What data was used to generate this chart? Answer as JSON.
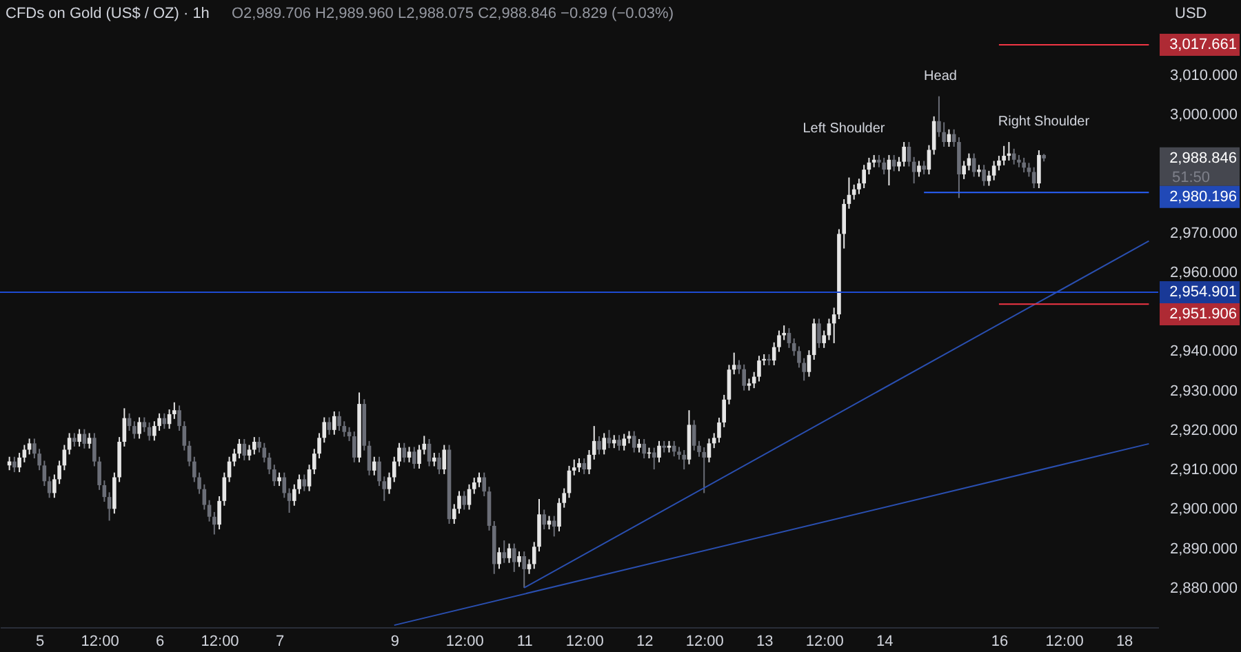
{
  "chart_data": {
    "type": "candlestick",
    "title": "CFDs on Gold (US$ / OZ) · 1h",
    "categories": [
      null,
      null,
      null,
      null,
      null,
      null,
      "5",
      null,
      null,
      null,
      null,
      null,
      null,
      null,
      null,
      null,
      null,
      null,
      "12:00",
      null,
      null,
      null,
      null,
      null,
      null,
      null,
      null,
      null,
      null,
      null,
      "6",
      null,
      null,
      null,
      null,
      null,
      null,
      null,
      null,
      null,
      null,
      null,
      "12:00",
      null,
      null,
      null,
      null,
      null,
      null,
      null,
      null,
      null,
      null,
      null,
      "7",
      null,
      null,
      null,
      null,
      null,
      null,
      null,
      null,
      null,
      null,
      null,
      null,
      null,
      null,
      null,
      null,
      null,
      null,
      null,
      null,
      null,
      null,
      "9",
      null,
      null,
      null,
      null,
      null,
      null,
      null,
      null,
      null,
      null,
      null,
      null,
      null,
      "12:00",
      null,
      null,
      null,
      null,
      null,
      null,
      null,
      null,
      null,
      null,
      null,
      "11",
      null,
      null,
      null,
      null,
      null,
      null,
      null,
      null,
      null,
      null,
      null,
      "12:00",
      null,
      null,
      null,
      null,
      null,
      null,
      null,
      null,
      null,
      null,
      null,
      "12",
      null,
      null,
      null,
      null,
      null,
      null,
      null,
      null,
      null,
      null,
      null,
      "12:00",
      null,
      null,
      null,
      null,
      null,
      null,
      null,
      null,
      null,
      null,
      null,
      "13",
      null,
      null,
      null,
      null,
      null,
      null,
      null,
      null,
      null,
      null,
      null,
      "12:00",
      null,
      null,
      null,
      null,
      null,
      null,
      null,
      null,
      null,
      null,
      null,
      "14",
      null,
      null,
      null,
      null,
      null,
      null,
      null,
      null,
      null,
      null,
      null,
      null,
      null,
      null,
      null,
      null,
      null,
      null,
      null,
      null,
      null,
      null,
      "16",
      null,
      null,
      null,
      null,
      null,
      null,
      null,
      null,
      null,
      null,
      null,
      null,
      "12:00",
      null,
      null,
      null,
      null,
      null,
      null,
      null,
      null,
      null,
      null,
      null,
      "18",
      null,
      null,
      null,
      null,
      null
    ],
    "ohlc": [
      [
        2911,
        2913.2,
        2909.8,
        2912
      ],
      [
        2912,
        2913.2,
        2909.3,
        2910.5
      ],
      [
        2910.5,
        2914.2,
        2909.3,
        2913
      ],
      [
        2913,
        2916.2,
        2911.8,
        2915
      ],
      [
        2915,
        2917.8,
        2913.8,
        2916.6
      ],
      [
        2916.6,
        2917.8,
        2912.8,
        2914
      ],
      [
        2914,
        2915.2,
        2909.8,
        2911
      ],
      [
        2911,
        2912.2,
        2905.8,
        2907
      ],
      [
        2907,
        2908.2,
        2902.8,
        2904
      ],
      [
        2904,
        2908.7,
        2902.8,
        2907.5
      ],
      [
        2907.5,
        2912.2,
        2906.3,
        2911
      ],
      [
        2911,
        2916.2,
        2909.8,
        2915
      ],
      [
        2915,
        2919.2,
        2913.8,
        2918
      ],
      [
        2918,
        2919.2,
        2915.8,
        2917
      ],
      [
        2917,
        2920.2,
        2915.8,
        2919
      ],
      [
        2919,
        2920.2,
        2915.3,
        2916.5
      ],
      [
        2916.5,
        2919.2,
        2915.3,
        2918
      ],
      [
        2918,
        2919.2,
        2910.8,
        2912
      ],
      [
        2912,
        2913.2,
        2904.8,
        2906
      ],
      [
        2906,
        2907.2,
        2901.8,
        2903
      ],
      [
        2903,
        2904.2,
        2897,
        2900
      ],
      [
        2900,
        2909.2,
        2898.8,
        2908
      ],
      [
        2908,
        2918.2,
        2906.8,
        2917
      ],
      [
        2917,
        2925.5,
        2915.8,
        2923
      ],
      [
        2923,
        2924.2,
        2919.8,
        2921
      ],
      [
        2921,
        2922.2,
        2917.8,
        2919
      ],
      [
        2919,
        2923.2,
        2917.8,
        2922
      ],
      [
        2922,
        2923.2,
        2919.5,
        2920.7
      ],
      [
        2920.7,
        2921.9,
        2917.3,
        2918.5
      ],
      [
        2918.5,
        2922.2,
        2917.3,
        2921
      ],
      [
        2921,
        2924.2,
        2919.8,
        2923
      ],
      [
        2923,
        2924.2,
        2920.3,
        2921.5
      ],
      [
        2921.5,
        2925.2,
        2920.3,
        2924
      ],
      [
        2924,
        2927,
        2922.8,
        2925
      ],
      [
        2925,
        2926.2,
        2919.8,
        2921
      ],
      [
        2921,
        2922.2,
        2914.8,
        2916
      ],
      [
        2916,
        2917.2,
        2910.8,
        2912
      ],
      [
        2912,
        2913.2,
        2906.8,
        2908
      ],
      [
        2908,
        2909.2,
        2903.8,
        2905
      ],
      [
        2905,
        2906.2,
        2899.8,
        2901
      ],
      [
        2901,
        2902.2,
        2896.8,
        2898
      ],
      [
        2898,
        2899.2,
        2893.5,
        2896
      ],
      [
        2896,
        2903.2,
        2894.8,
        2902
      ],
      [
        2902,
        2909.2,
        2900.8,
        2908
      ],
      [
        2908,
        2913.2,
        2906.8,
        2912
      ],
      [
        2912,
        2915.2,
        2910.8,
        2914
      ],
      [
        2914,
        2917.7,
        2912.8,
        2916.5
      ],
      [
        2916.5,
        2917.7,
        2912.3,
        2913.5
      ],
      [
        2913.5,
        2916.2,
        2912.3,
        2915
      ],
      [
        2915,
        2918.2,
        2913.8,
        2917
      ],
      [
        2917,
        2918.2,
        2914.3,
        2915.5
      ],
      [
        2915.5,
        2916.7,
        2911.8,
        2913
      ],
      [
        2913,
        2914.2,
        2908.8,
        2910
      ],
      [
        2910,
        2911.2,
        2905.8,
        2907
      ],
      [
        2907,
        2909.2,
        2905.8,
        2908
      ],
      [
        2908,
        2909.2,
        2902.8,
        2904
      ],
      [
        2904,
        2905.2,
        2899,
        2902
      ],
      [
        2902,
        2906.2,
        2900.8,
        2905
      ],
      [
        2905,
        2908.7,
        2903.8,
        2907.5
      ],
      [
        2907.5,
        2908.7,
        2904.5,
        2905.7
      ],
      [
        2905.7,
        2911.2,
        2904.5,
        2910
      ],
      [
        2910,
        2915.2,
        2908.8,
        2914
      ],
      [
        2914,
        2919.2,
        2912.8,
        2918
      ],
      [
        2918,
        2923.2,
        2916.8,
        2922
      ],
      [
        2922,
        2923.2,
        2918.8,
        2920
      ],
      [
        2920,
        2924.7,
        2918.8,
        2923.5
      ],
      [
        2923.5,
        2924.7,
        2919.8,
        2921
      ],
      [
        2921,
        2922.2,
        2918.3,
        2919.5
      ],
      [
        2919.5,
        2920.7,
        2917.2,
        2918.4
      ],
      [
        2918.4,
        2919.6,
        2911.8,
        2913
      ],
      [
        2913,
        2929.5,
        2911.8,
        2926.6
      ],
      [
        2926.6,
        2927.8,
        2914.8,
        2916
      ],
      [
        2916,
        2917.2,
        2908.5,
        2909.7
      ],
      [
        2909.7,
        2913.2,
        2908.5,
        2912
      ],
      [
        2912,
        2913.2,
        2905.8,
        2907
      ],
      [
        2907,
        2908.2,
        2902,
        2905
      ],
      [
        2905,
        2909.2,
        2903.8,
        2908
      ],
      [
        2908,
        2913.2,
        2906.8,
        2912
      ],
      [
        2912,
        2916.7,
        2910.8,
        2915.5
      ],
      [
        2915.5,
        2916.7,
        2911.8,
        2913
      ],
      [
        2913,
        2915.7,
        2911.8,
        2914.5
      ],
      [
        2914.5,
        2915.7,
        2910.2,
        2911.4
      ],
      [
        2911.4,
        2916.2,
        2910.2,
        2915
      ],
      [
        2915,
        2918.5,
        2913.8,
        2916.5
      ],
      [
        2916.5,
        2917.7,
        2910.8,
        2912
      ],
      [
        2912,
        2914.2,
        2910.8,
        2913
      ],
      [
        2913,
        2914.2,
        2908.8,
        2910
      ],
      [
        2910,
        2916.2,
        2908.8,
        2915
      ],
      [
        2915,
        2916.2,
        2896.2,
        2897.4
      ],
      [
        2897.4,
        2901.2,
        2896.2,
        2900
      ],
      [
        2900,
        2904.5,
        2898.8,
        2903.3
      ],
      [
        2903.3,
        2904.5,
        2899.8,
        2901
      ],
      [
        2901,
        2906.2,
        2899.8,
        2905
      ],
      [
        2905,
        2907.9,
        2903.8,
        2906.7
      ],
      [
        2906.7,
        2909.2,
        2905.5,
        2908
      ],
      [
        2908,
        2909.2,
        2903.2,
        2904.4
      ],
      [
        2904.4,
        2905.6,
        2894.5,
        2895.7
      ],
      [
        2895.7,
        2896.9,
        2883.5,
        2886
      ],
      [
        2886,
        2890.2,
        2884.8,
        2889
      ],
      [
        2889,
        2892,
        2886.3,
        2887.5
      ],
      [
        2887.5,
        2891.2,
        2886.3,
        2890
      ],
      [
        2890,
        2891.2,
        2884,
        2886.5
      ],
      [
        2886.5,
        2889.2,
        2885.3,
        2888
      ],
      [
        2888,
        2889.2,
        2880,
        2884.7
      ],
      [
        2884.7,
        2887.2,
        2883.5,
        2886
      ],
      [
        2886,
        2891.6,
        2884.8,
        2890.4
      ],
      [
        2890.4,
        2902.5,
        2889.2,
        2898.6
      ],
      [
        2898.6,
        2899.8,
        2894.8,
        2896
      ],
      [
        2896,
        2898.2,
        2894.8,
        2897
      ],
      [
        2897,
        2898.2,
        2893,
        2895.5
      ],
      [
        2895.5,
        2902.7,
        2894.3,
        2901.5
      ],
      [
        2901.5,
        2905.2,
        2900.3,
        2904
      ],
      [
        2904,
        2910.9,
        2902.8,
        2909.7
      ],
      [
        2909.7,
        2912.5,
        2908.5,
        2910.5
      ],
      [
        2910.5,
        2912.8,
        2909.3,
        2911.6
      ],
      [
        2911.6,
        2912.8,
        2908.8,
        2910
      ],
      [
        2910,
        2914.9,
        2908.8,
        2913.7
      ],
      [
        2913.7,
        2921,
        2912.5,
        2917.2
      ],
      [
        2917.2,
        2918.4,
        2913.8,
        2915
      ],
      [
        2915,
        2919.2,
        2913.8,
        2918
      ],
      [
        2918,
        2920,
        2915.4,
        2916.6
      ],
      [
        2916.6,
        2918.7,
        2915.4,
        2917.5
      ],
      [
        2917.5,
        2918.7,
        2914.8,
        2916
      ],
      [
        2916,
        2919,
        2914.8,
        2917.8
      ],
      [
        2917.8,
        2919.7,
        2916.6,
        2918.5
      ],
      [
        2918.5,
        2919.7,
        2914.3,
        2915.5
      ],
      [
        2915.5,
        2917.7,
        2914.3,
        2916.5
      ],
      [
        2916.5,
        2917.7,
        2912.8,
        2914
      ],
      [
        2914,
        2915.5,
        2912.8,
        2914.3
      ],
      [
        2914.3,
        2915.5,
        2910,
        2913
      ],
      [
        2913,
        2917.2,
        2911.8,
        2916
      ],
      [
        2916,
        2917.2,
        2914.3,
        2915.5
      ],
      [
        2915.5,
        2917.2,
        2914.3,
        2916
      ],
      [
        2916,
        2917.2,
        2913.3,
        2914.5
      ],
      [
        2914.5,
        2915.7,
        2912.5,
        2913.7
      ],
      [
        2913.7,
        2914.9,
        2910,
        2912.5
      ],
      [
        2912.5,
        2925,
        2911.3,
        2921.3
      ],
      [
        2921.3,
        2922.5,
        2914.8,
        2916
      ],
      [
        2916,
        2917.2,
        2913.2,
        2914.4
      ],
      [
        2914.4,
        2915.6,
        2904,
        2913
      ],
      [
        2913,
        2917.8,
        2911.8,
        2916.6
      ],
      [
        2916.6,
        2919.2,
        2915.4,
        2918
      ],
      [
        2918,
        2923.1,
        2916.8,
        2921.9
      ],
      [
        2921.9,
        2928.9,
        2920.7,
        2927.7
      ],
      [
        2927.7,
        2936.5,
        2926.5,
        2935.3
      ],
      [
        2935.3,
        2939.6,
        2934.1,
        2936.5
      ],
      [
        2936.5,
        2937.7,
        2934.2,
        2935.4
      ],
      [
        2935.4,
        2936.6,
        2930,
        2931.2
      ],
      [
        2931.2,
        2933,
        2930,
        2931.8
      ],
      [
        2931.8,
        2934.7,
        2930.6,
        2933.5
      ],
      [
        2933.5,
        2938.8,
        2932.3,
        2937.6
      ],
      [
        2937.6,
        2939.2,
        2936.4,
        2938
      ],
      [
        2938,
        2939.2,
        2936.4,
        2937.6
      ],
      [
        2937.6,
        2942.2,
        2936.4,
        2941
      ],
      [
        2941,
        2945.2,
        2939.8,
        2944
      ],
      [
        2944,
        2946.5,
        2942.8,
        2944.6
      ],
      [
        2944.6,
        2945.8,
        2940.8,
        2942
      ],
      [
        2942,
        2943.2,
        2938.8,
        2940
      ],
      [
        2940,
        2941.2,
        2935.8,
        2937
      ],
      [
        2937,
        2938.2,
        2932.5,
        2934.7
      ],
      [
        2934.7,
        2940.2,
        2933.5,
        2939
      ],
      [
        2939,
        2948.2,
        2937.8,
        2947
      ],
      [
        2947,
        2948.2,
        2940.8,
        2942
      ],
      [
        2942,
        2945.2,
        2940.8,
        2944
      ],
      [
        2944,
        2948.2,
        2942.8,
        2947
      ],
      [
        2947,
        2951,
        2942,
        2949.3
      ],
      [
        2949.3,
        2970.9,
        2948.1,
        2969.7
      ],
      [
        2969.7,
        2978.5,
        2966,
        2977.3
      ],
      [
        2977.3,
        2984,
        2976.1,
        2979.6
      ],
      [
        2979.6,
        2982.2,
        2978.4,
        2981
      ],
      [
        2981,
        2983.7,
        2979.8,
        2982.5
      ],
      [
        2982.5,
        2987.2,
        2981.3,
        2986
      ],
      [
        2986,
        2989,
        2984.8,
        2987.8
      ],
      [
        2987.8,
        2989.7,
        2986.6,
        2988.5
      ],
      [
        2988.5,
        2989.7,
        2986.6,
        2987.8
      ],
      [
        2987.8,
        2989,
        2984.8,
        2986
      ],
      [
        2986,
        2989.7,
        2982,
        2988.5
      ],
      [
        2988.5,
        2989.7,
        2985.6,
        2986.8
      ],
      [
        2986.8,
        2989.2,
        2985.6,
        2988
      ],
      [
        2988,
        2993,
        2986.8,
        2991.8
      ],
      [
        2991.8,
        2993,
        2986.8,
        2988
      ],
      [
        2988,
        2989.2,
        2982.5,
        2985.4
      ],
      [
        2985.4,
        2988.2,
        2984.2,
        2987
      ],
      [
        2987,
        2988.2,
        2984.8,
        2986
      ],
      [
        2986,
        2992.2,
        2984.8,
        2991
      ],
      [
        2991,
        2999.5,
        2989.8,
        2998.3
      ],
      [
        2998.3,
        3004.6,
        2994.3,
        2995.5
      ],
      [
        2995.5,
        2998,
        2991.8,
        2993
      ],
      [
        2993,
        2996.2,
        2991.8,
        2995
      ],
      [
        2995,
        2996.2,
        2991.8,
        2993
      ],
      [
        2993,
        2994.2,
        2978.8,
        2984.8
      ],
      [
        2984.8,
        2988.2,
        2983.6,
        2987
      ],
      [
        2987,
        2990.1,
        2985.8,
        2988.9
      ],
      [
        2988.9,
        2990.1,
        2984.2,
        2985.4
      ],
      [
        2985.4,
        2987.2,
        2984.2,
        2986
      ],
      [
        2986,
        2987.2,
        2981.9,
        2983.1
      ],
      [
        2983.1,
        2985.7,
        2981.9,
        2984.5
      ],
      [
        2984.5,
        2988.2,
        2983.3,
        2987
      ],
      [
        2987,
        2989.5,
        2985.8,
        2988.3
      ],
      [
        2988.3,
        2992,
        2987.1,
        2989.5
      ],
      [
        2989.5,
        2993,
        2988.3,
        2990.1
      ],
      [
        2990.1,
        2991.3,
        2987.3,
        2988.5
      ],
      [
        2988.5,
        2989.7,
        2986.6,
        2987.8
      ],
      [
        2987.8,
        2989,
        2985.3,
        2986.5
      ],
      [
        2986.5,
        2987.7,
        2984.2,
        2985.4
      ],
      [
        2985.4,
        2986.6,
        2981.3,
        2982.5
      ],
      [
        2982.5,
        2990.9,
        2981.3,
        2989.706
      ],
      [
        2989.706,
        2989.96,
        2988.075,
        2988.846
      ],
      null,
      null,
      null,
      null,
      null,
      null,
      null,
      null,
      null,
      null,
      null,
      null,
      null,
      null,
      null,
      null,
      null,
      null,
      null,
      null,
      null
    ],
    "ylim": [
      2870,
      3029
    ],
    "yticks": [
      {
        "value": 2880,
        "label": "2,880.000"
      },
      {
        "value": 2890,
        "label": "2,890.000"
      },
      {
        "value": 2900,
        "label": "2,900.000"
      },
      {
        "value": 2910,
        "label": "2,910.000"
      },
      {
        "value": 2920,
        "label": "2,920.000"
      },
      {
        "value": 2930,
        "label": "2,930.000"
      },
      {
        "value": 2940,
        "label": "2,940.000"
      },
      {
        "value": 2960,
        "label": "2,960.000"
      },
      {
        "value": 2970,
        "label": "2,970.000"
      },
      {
        "value": 3000,
        "label": "3,000.000"
      },
      {
        "value": 3010,
        "label": "3,010.000"
      }
    ],
    "series": [
      {
        "type": "line",
        "color": "#2a4fb0",
        "values": [
          null,
          null,
          null,
          null,
          null,
          null,
          null,
          null,
          null,
          null,
          null,
          null,
          null,
          null,
          null,
          null,
          null,
          null,
          null,
          null,
          null,
          null,
          null,
          null,
          null,
          null,
          null,
          null,
          null,
          null,
          null,
          null,
          null,
          null,
          null,
          null,
          null,
          null,
          null,
          null,
          null,
          null,
          null,
          null,
          null,
          null,
          null,
          null,
          null,
          null,
          null,
          null,
          null,
          null,
          null,
          null,
          null,
          null,
          null,
          null,
          null,
          null,
          null,
          null,
          null,
          null,
          null,
          null,
          null,
          null,
          null,
          null,
          null,
          null,
          null,
          null,
          null,
          null,
          null,
          null,
          null,
          null,
          null,
          null,
          null,
          null,
          null,
          null,
          null,
          null,
          null,
          null,
          null,
          null,
          null,
          null,
          null,
          null,
          null,
          null,
          null,
          null,
          null,
          2880,
          null,
          null,
          null,
          null,
          null,
          null,
          null,
          null,
          null,
          null,
          null,
          null,
          null,
          null,
          null,
          null,
          null,
          null,
          null,
          null,
          null,
          null,
          null,
          null,
          null,
          null,
          null,
          null,
          null,
          null,
          null,
          null,
          null,
          null,
          null,
          null,
          null,
          null,
          null,
          null,
          null,
          null,
          null,
          null,
          null,
          null,
          null,
          null,
          null,
          null,
          null,
          null,
          null,
          null,
          null,
          null,
          null,
          null,
          null,
          null,
          null,
          null,
          null,
          null,
          null,
          null,
          null,
          null,
          null,
          null,
          null,
          null,
          null,
          null,
          null,
          null,
          null,
          null,
          null,
          null,
          null,
          null,
          null,
          null,
          null,
          null,
          null,
          null,
          null,
          null,
          null,
          null,
          null,
          null,
          null,
          null,
          null,
          null,
          null,
          null,
          null,
          null,
          null,
          null,
          null,
          null,
          null,
          null,
          null,
          null,
          null,
          null,
          null,
          null,
          null,
          null,
          null,
          null,
          null,
          null,
          null,
          null,
          null,
          null,
          2967.9
        ]
      },
      {
        "type": "line",
        "color": "#2a4fb0",
        "values": [
          null,
          null,
          null,
          null,
          null,
          null,
          null,
          null,
          null,
          null,
          null,
          null,
          null,
          null,
          null,
          null,
          null,
          null,
          null,
          null,
          null,
          null,
          null,
          null,
          null,
          null,
          null,
          null,
          null,
          null,
          null,
          null,
          null,
          null,
          null,
          null,
          null,
          null,
          null,
          null,
          null,
          null,
          null,
          null,
          null,
          null,
          null,
          null,
          null,
          null,
          null,
          null,
          null,
          null,
          null,
          null,
          null,
          null,
          null,
          null,
          null,
          null,
          null,
          null,
          null,
          null,
          null,
          null,
          null,
          null,
          null,
          null,
          null,
          null,
          null,
          null,
          null,
          2870.5,
          null,
          null,
          null,
          null,
          null,
          null,
          null,
          null,
          null,
          null,
          null,
          null,
          null,
          null,
          null,
          null,
          null,
          null,
          null,
          null,
          null,
          null,
          null,
          null,
          null,
          null,
          null,
          null,
          null,
          null,
          null,
          null,
          null,
          null,
          null,
          null,
          null,
          null,
          null,
          null,
          null,
          null,
          null,
          null,
          null,
          null,
          null,
          null,
          null,
          null,
          null,
          null,
          null,
          null,
          null,
          null,
          null,
          null,
          null,
          null,
          null,
          null,
          null,
          null,
          null,
          null,
          null,
          null,
          null,
          null,
          null,
          null,
          null,
          null,
          null,
          null,
          null,
          null,
          null,
          null,
          null,
          null,
          null,
          null,
          null,
          null,
          null,
          null,
          null,
          null,
          null,
          null,
          null,
          null,
          null,
          null,
          null,
          null,
          null,
          null,
          null,
          null,
          null,
          null,
          null,
          null,
          null,
          null,
          null,
          null,
          null,
          null,
          null,
          null,
          null,
          null,
          null,
          null,
          null,
          null,
          null,
          null,
          null,
          null,
          null,
          null,
          null,
          null,
          null,
          null,
          null,
          null,
          null,
          null,
          null,
          null,
          null,
          null,
          null,
          null,
          null,
          null,
          null,
          null,
          null,
          null,
          null,
          null,
          null,
          null,
          2916.5
        ]
      },
      {
        "type": "line",
        "name": "3,017.661",
        "color": "#f23645",
        "values": [
          null,
          null,
          null,
          null,
          null,
          null,
          null,
          null,
          null,
          null,
          null,
          null,
          null,
          null,
          null,
          null,
          null,
          null,
          null,
          null,
          null,
          null,
          null,
          null,
          null,
          null,
          null,
          null,
          null,
          null,
          null,
          null,
          null,
          null,
          null,
          null,
          null,
          null,
          null,
          null,
          null,
          null,
          null,
          null,
          null,
          null,
          null,
          null,
          null,
          null,
          null,
          null,
          null,
          null,
          null,
          null,
          null,
          null,
          null,
          null,
          null,
          null,
          null,
          null,
          null,
          null,
          null,
          null,
          null,
          null,
          null,
          null,
          null,
          null,
          null,
          null,
          null,
          null,
          null,
          null,
          null,
          null,
          null,
          null,
          null,
          null,
          null,
          null,
          null,
          null,
          null,
          null,
          null,
          null,
          null,
          null,
          null,
          null,
          null,
          null,
          null,
          null,
          null,
          null,
          null,
          null,
          null,
          null,
          null,
          null,
          null,
          null,
          null,
          null,
          null,
          null,
          null,
          null,
          null,
          null,
          null,
          null,
          null,
          null,
          null,
          null,
          null,
          null,
          null,
          null,
          null,
          null,
          null,
          null,
          null,
          null,
          null,
          null,
          null,
          null,
          null,
          null,
          null,
          null,
          null,
          null,
          null,
          null,
          null,
          null,
          null,
          null,
          null,
          null,
          null,
          null,
          null,
          null,
          null,
          null,
          null,
          null,
          null,
          null,
          null,
          null,
          null,
          null,
          null,
          null,
          null,
          null,
          null,
          null,
          null,
          null,
          null,
          null,
          null,
          null,
          null,
          null,
          null,
          null,
          null,
          null,
          null,
          null,
          null,
          null,
          null,
          null,
          null,
          null,
          null,
          null,
          null,
          null,
          3017.661,
          null,
          null,
          null,
          null,
          null,
          null,
          null,
          null,
          null,
          null,
          null,
          null,
          null,
          null,
          null,
          null,
          null,
          null,
          null,
          null,
          null,
          null,
          null,
          null,
          null,
          null,
          null,
          null,
          null,
          3017.661
        ]
      },
      {
        "type": "line",
        "name": "2,980.196",
        "color": "#2962ff",
        "values": [
          null,
          null,
          null,
          null,
          null,
          null,
          null,
          null,
          null,
          null,
          null,
          null,
          null,
          null,
          null,
          null,
          null,
          null,
          null,
          null,
          null,
          null,
          null,
          null,
          null,
          null,
          null,
          null,
          null,
          null,
          null,
          null,
          null,
          null,
          null,
          null,
          null,
          null,
          null,
          null,
          null,
          null,
          null,
          null,
          null,
          null,
          null,
          null,
          null,
          null,
          null,
          null,
          null,
          null,
          null,
          null,
          null,
          null,
          null,
          null,
          null,
          null,
          null,
          null,
          null,
          null,
          null,
          null,
          null,
          null,
          null,
          null,
          null,
          null,
          null,
          null,
          null,
          null,
          null,
          null,
          null,
          null,
          null,
          null,
          null,
          null,
          null,
          null,
          null,
          null,
          null,
          null,
          null,
          null,
          null,
          null,
          null,
          null,
          null,
          null,
          null,
          null,
          null,
          null,
          null,
          null,
          null,
          null,
          null,
          null,
          null,
          null,
          null,
          null,
          null,
          null,
          null,
          null,
          null,
          null,
          null,
          null,
          null,
          null,
          null,
          null,
          null,
          null,
          null,
          null,
          null,
          null,
          null,
          null,
          null,
          null,
          null,
          null,
          null,
          null,
          null,
          null,
          null,
          null,
          null,
          null,
          null,
          null,
          null,
          null,
          null,
          null,
          null,
          null,
          null,
          null,
          null,
          null,
          null,
          null,
          null,
          null,
          null,
          null,
          null,
          null,
          null,
          null,
          null,
          null,
          null,
          null,
          null,
          null,
          null,
          null,
          null,
          null,
          null,
          null,
          null,
          null,
          null,
          2980.196,
          null,
          null,
          null,
          null,
          null,
          null,
          null,
          null,
          null,
          null,
          null,
          null,
          null,
          null,
          null,
          null,
          null,
          null,
          null,
          null,
          null,
          null,
          null,
          null,
          null,
          null,
          null,
          null,
          null,
          null,
          null,
          null,
          null,
          null,
          null,
          null,
          null,
          null,
          null,
          null,
          null,
          null,
          null,
          null,
          2980.196
        ]
      },
      {
        "type": "line",
        "name": "2,951.906",
        "color": "#f23645",
        "values": [
          null,
          null,
          null,
          null,
          null,
          null,
          null,
          null,
          null,
          null,
          null,
          null,
          null,
          null,
          null,
          null,
          null,
          null,
          null,
          null,
          null,
          null,
          null,
          null,
          null,
          null,
          null,
          null,
          null,
          null,
          null,
          null,
          null,
          null,
          null,
          null,
          null,
          null,
          null,
          null,
          null,
          null,
          null,
          null,
          null,
          null,
          null,
          null,
          null,
          null,
          null,
          null,
          null,
          null,
          null,
          null,
          null,
          null,
          null,
          null,
          null,
          null,
          null,
          null,
          null,
          null,
          null,
          null,
          null,
          null,
          null,
          null,
          null,
          null,
          null,
          null,
          null,
          null,
          null,
          null,
          null,
          null,
          null,
          null,
          null,
          null,
          null,
          null,
          null,
          null,
          null,
          null,
          null,
          null,
          null,
          null,
          null,
          null,
          null,
          null,
          null,
          null,
          null,
          null,
          null,
          null,
          null,
          null,
          null,
          null,
          null,
          null,
          null,
          null,
          null,
          null,
          null,
          null,
          null,
          null,
          null,
          null,
          null,
          null,
          null,
          null,
          null,
          null,
          null,
          null,
          null,
          null,
          null,
          null,
          null,
          null,
          null,
          null,
          null,
          null,
          null,
          null,
          null,
          null,
          null,
          null,
          null,
          null,
          null,
          null,
          null,
          null,
          null,
          null,
          null,
          null,
          null,
          null,
          null,
          null,
          null,
          null,
          null,
          null,
          null,
          null,
          null,
          null,
          null,
          null,
          null,
          null,
          null,
          null,
          null,
          null,
          null,
          null,
          null,
          null,
          null,
          null,
          null,
          null,
          null,
          null,
          null,
          null,
          null,
          null,
          null,
          null,
          null,
          null,
          null,
          null,
          null,
          null,
          2951.906,
          null,
          null,
          null,
          null,
          null,
          null,
          null,
          null,
          null,
          null,
          null,
          null,
          null,
          null,
          null,
          null,
          null,
          null,
          null,
          null,
          null,
          null,
          null,
          null,
          null,
          null,
          null,
          null,
          null,
          2951.906
        ]
      }
    ],
    "ref_lines": [
      {
        "axis": "y",
        "value": 2954.901,
        "label": "2,954.901",
        "color": "#1e4bd2"
      }
    ],
    "annotations": [
      "O2,989.706 H2,989.960 L2,988.075 C2,988.846 −0.829 (−0.03%)",
      "USD",
      "2,988.846",
      "51:50",
      "Head",
      "Left Shoulder",
      "Right Shoulder"
    ],
    "grid": false
  }
}
